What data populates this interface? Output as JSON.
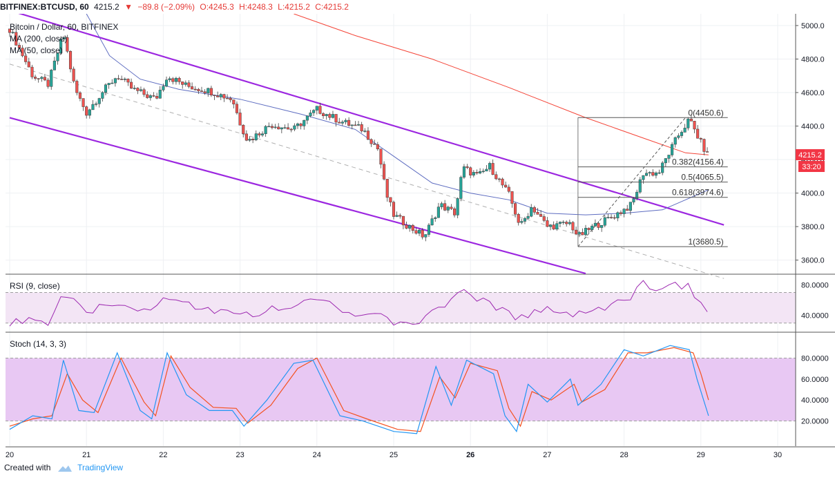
{
  "header": {
    "symbol": "BITFINEX:BTCUSD, 60",
    "last": "4215.2",
    "change": "−89.8 (−2.09%)",
    "open": "O:4245.3",
    "high": "H:4248.3",
    "low": "L:4215.2",
    "close": "C:4215.2"
  },
  "legend": {
    "title": "Bitcoin / Dollar, 60, BITFINEX",
    "ma200": "MA (200, close)",
    "ma50": "MA (50, close)"
  },
  "price_tag": {
    "value": "4215.2",
    "countdown": "33:20",
    "color": "#f23645"
  },
  "fib_levels": [
    {
      "label": "0(4450.6)",
      "price": 4450.6
    },
    {
      "label": "0.382(4156.4)",
      "price": 4156.4
    },
    {
      "label": "0.5(4065.5)",
      "price": 4065.5
    },
    {
      "label": "0.618(3974.6)",
      "price": 3974.6
    },
    {
      "label": "1(3680.5)",
      "price": 3680.5
    }
  ],
  "rsi": {
    "label": "RSI (9, close)",
    "ticks": [
      "80.0000",
      "40.0000"
    ],
    "bands": [
      70,
      30
    ]
  },
  "stoch": {
    "label": "Stoch (14, 3, 3)",
    "ticks": [
      "80.0000",
      "60.0000",
      "40.0000",
      "20.0000"
    ],
    "bands": [
      80,
      20
    ]
  },
  "chart_data": {
    "type": "candlestick",
    "title": "Bitcoin / Dollar, 60, BITFINEX",
    "x_ticks": [
      "20",
      "21",
      "22",
      "23",
      "24",
      "25",
      "26",
      "27",
      "28",
      "29",
      "30"
    ],
    "x_tick_days": [
      20,
      21,
      22,
      23,
      24,
      25,
      26,
      27,
      28,
      29,
      30
    ],
    "y_ticks": [
      5000,
      4800,
      4600,
      4400,
      4200,
      4000,
      3800,
      3600
    ],
    "y_tick_labels": [
      "5000.0",
      "4800.0",
      "4600.0",
      "4400.0",
      "4200.0",
      "4000.0",
      "3800.0",
      "3600.0"
    ],
    "ylim": [
      3520,
      5070
    ],
    "close_path": [
      {
        "day": 20.0,
        "price": 4980
      },
      {
        "day": 20.3,
        "price": 4700
      },
      {
        "day": 20.5,
        "price": 4650
      },
      {
        "day": 20.7,
        "price": 4950
      },
      {
        "day": 20.85,
        "price": 4620
      },
      {
        "day": 21.0,
        "price": 4480
      },
      {
        "day": 21.2,
        "price": 4600
      },
      {
        "day": 21.4,
        "price": 4700
      },
      {
        "day": 21.6,
        "price": 4620
      },
      {
        "day": 21.9,
        "price": 4560
      },
      {
        "day": 22.05,
        "price": 4700
      },
      {
        "day": 22.3,
        "price": 4640
      },
      {
        "day": 22.6,
        "price": 4610
      },
      {
        "day": 22.9,
        "price": 4560
      },
      {
        "day": 23.0,
        "price": 4420
      },
      {
        "day": 23.1,
        "price": 4310
      },
      {
        "day": 23.4,
        "price": 4410
      },
      {
        "day": 23.7,
        "price": 4380
      },
      {
        "day": 24.0,
        "price": 4500
      },
      {
        "day": 24.3,
        "price": 4430
      },
      {
        "day": 24.6,
        "price": 4380
      },
      {
        "day": 24.8,
        "price": 4260
      },
      {
        "day": 24.9,
        "price": 4000
      },
      {
        "day": 25.0,
        "price": 3870
      },
      {
        "day": 25.2,
        "price": 3800
      },
      {
        "day": 25.4,
        "price": 3740
      },
      {
        "day": 25.6,
        "price": 3930
      },
      {
        "day": 25.8,
        "price": 3880
      },
      {
        "day": 25.9,
        "price": 4150
      },
      {
        "day": 26.1,
        "price": 4100
      },
      {
        "day": 26.25,
        "price": 4160
      },
      {
        "day": 26.5,
        "price": 3990
      },
      {
        "day": 26.65,
        "price": 3800
      },
      {
        "day": 26.8,
        "price": 3920
      },
      {
        "day": 27.0,
        "price": 3800
      },
      {
        "day": 27.3,
        "price": 3820
      },
      {
        "day": 27.4,
        "price": 3740
      },
      {
        "day": 27.6,
        "price": 3800
      },
      {
        "day": 27.85,
        "price": 3860
      },
      {
        "day": 28.1,
        "price": 3930
      },
      {
        "day": 28.25,
        "price": 4120
      },
      {
        "day": 28.45,
        "price": 4120
      },
      {
        "day": 28.7,
        "price": 4340
      },
      {
        "day": 28.85,
        "price": 4440
      },
      {
        "day": 29.0,
        "price": 4300
      },
      {
        "day": 29.1,
        "price": 4215
      }
    ],
    "ma200": [
      {
        "day": 23.7,
        "price": 5070
      },
      {
        "day": 24.5,
        "price": 4940
      },
      {
        "day": 25.5,
        "price": 4800
      },
      {
        "day": 26.5,
        "price": 4630
      },
      {
        "day": 27.5,
        "price": 4450
      },
      {
        "day": 28.3,
        "price": 4320
      },
      {
        "day": 28.8,
        "price": 4240
      },
      {
        "day": 29.1,
        "price": 4228
      }
    ],
    "ma50": [
      {
        "day": 21.0,
        "price": 5070
      },
      {
        "day": 21.3,
        "price": 4820
      },
      {
        "day": 21.7,
        "price": 4680
      },
      {
        "day": 22.2,
        "price": 4620
      },
      {
        "day": 23.0,
        "price": 4560
      },
      {
        "day": 23.8,
        "price": 4470
      },
      {
        "day": 24.5,
        "price": 4380
      },
      {
        "day": 25.0,
        "price": 4220
      },
      {
        "day": 25.5,
        "price": 4060
      },
      {
        "day": 26.0,
        "price": 4000
      },
      {
        "day": 26.5,
        "price": 3960
      },
      {
        "day": 27.0,
        "price": 3880
      },
      {
        "day": 27.5,
        "price": 3870
      },
      {
        "day": 28.0,
        "price": 3880
      },
      {
        "day": 28.5,
        "price": 3900
      },
      {
        "day": 28.8,
        "price": 3960
      },
      {
        "day": 29.1,
        "price": 4020
      }
    ],
    "channel_upper": [
      {
        "day": 20.0,
        "price": 5090
      },
      {
        "day": 29.3,
        "price": 3810
      }
    ],
    "channel_lower": [
      {
        "day": 20.0,
        "price": 4450
      },
      {
        "day": 27.5,
        "price": 3520
      }
    ],
    "channel_mid": [
      {
        "day": 20.0,
        "price": 4770
      },
      {
        "day": 29.3,
        "price": 3490
      }
    ],
    "fib_anchor": {
      "start_day": 27.4,
      "end_day": 29.35,
      "low": 3680.5,
      "high": 4450.6
    },
    "rsi_path": [
      {
        "day": 20.0,
        "v": 31
      },
      {
        "day": 20.3,
        "v": 36
      },
      {
        "day": 20.5,
        "v": 32
      },
      {
        "day": 20.7,
        "v": 70
      },
      {
        "day": 21.0,
        "v": 46
      },
      {
        "day": 21.4,
        "v": 55
      },
      {
        "day": 21.8,
        "v": 48
      },
      {
        "day": 22.0,
        "v": 60
      },
      {
        "day": 22.5,
        "v": 50
      },
      {
        "day": 23.0,
        "v": 38
      },
      {
        "day": 23.4,
        "v": 48
      },
      {
        "day": 24.0,
        "v": 62
      },
      {
        "day": 24.5,
        "v": 42
      },
      {
        "day": 24.8,
        "v": 48
      },
      {
        "day": 25.0,
        "v": 28
      },
      {
        "day": 25.4,
        "v": 35
      },
      {
        "day": 25.6,
        "v": 50
      },
      {
        "day": 25.9,
        "v": 72
      },
      {
        "day": 26.3,
        "v": 52
      },
      {
        "day": 26.6,
        "v": 38
      },
      {
        "day": 27.0,
        "v": 48
      },
      {
        "day": 27.4,
        "v": 42
      },
      {
        "day": 27.8,
        "v": 52
      },
      {
        "day": 28.1,
        "v": 62
      },
      {
        "day": 28.2,
        "v": 82
      },
      {
        "day": 28.5,
        "v": 75
      },
      {
        "day": 28.7,
        "v": 80
      },
      {
        "day": 28.85,
        "v": 78
      },
      {
        "day": 28.95,
        "v": 60
      },
      {
        "day": 29.1,
        "v": 47
      }
    ],
    "stoch_k": [
      {
        "day": 20.0,
        "v": 12
      },
      {
        "day": 20.3,
        "v": 25
      },
      {
        "day": 20.55,
        "v": 22
      },
      {
        "day": 20.7,
        "v": 78
      },
      {
        "day": 20.9,
        "v": 30
      },
      {
        "day": 21.1,
        "v": 28
      },
      {
        "day": 21.4,
        "v": 85
      },
      {
        "day": 21.7,
        "v": 30
      },
      {
        "day": 21.85,
        "v": 22
      },
      {
        "day": 22.05,
        "v": 85
      },
      {
        "day": 22.3,
        "v": 45
      },
      {
        "day": 22.6,
        "v": 30
      },
      {
        "day": 22.9,
        "v": 30
      },
      {
        "day": 23.05,
        "v": 15
      },
      {
        "day": 23.35,
        "v": 40
      },
      {
        "day": 23.7,
        "v": 75
      },
      {
        "day": 23.95,
        "v": 78
      },
      {
        "day": 24.3,
        "v": 25
      },
      {
        "day": 24.6,
        "v": 20
      },
      {
        "day": 25.0,
        "v": 10
      },
      {
        "day": 25.3,
        "v": 8
      },
      {
        "day": 25.55,
        "v": 72
      },
      {
        "day": 25.75,
        "v": 35
      },
      {
        "day": 25.95,
        "v": 78
      },
      {
        "day": 26.3,
        "v": 65
      },
      {
        "day": 26.45,
        "v": 25
      },
      {
        "day": 26.6,
        "v": 10
      },
      {
        "day": 26.75,
        "v": 55
      },
      {
        "day": 27.0,
        "v": 38
      },
      {
        "day": 27.3,
        "v": 60
      },
      {
        "day": 27.4,
        "v": 35
      },
      {
        "day": 27.7,
        "v": 55
      },
      {
        "day": 28.0,
        "v": 88
      },
      {
        "day": 28.25,
        "v": 82
      },
      {
        "day": 28.6,
        "v": 92
      },
      {
        "day": 28.85,
        "v": 88
      },
      {
        "day": 28.95,
        "v": 60
      },
      {
        "day": 29.1,
        "v": 25
      }
    ],
    "stoch_d": [
      {
        "day": 20.0,
        "v": 15
      },
      {
        "day": 20.3,
        "v": 22
      },
      {
        "day": 20.55,
        "v": 25
      },
      {
        "day": 20.75,
        "v": 65
      },
      {
        "day": 20.95,
        "v": 40
      },
      {
        "day": 21.15,
        "v": 28
      },
      {
        "day": 21.45,
        "v": 80
      },
      {
        "day": 21.75,
        "v": 38
      },
      {
        "day": 21.9,
        "v": 25
      },
      {
        "day": 22.1,
        "v": 82
      },
      {
        "day": 22.35,
        "v": 52
      },
      {
        "day": 22.65,
        "v": 33
      },
      {
        "day": 22.95,
        "v": 32
      },
      {
        "day": 23.1,
        "v": 18
      },
      {
        "day": 23.4,
        "v": 35
      },
      {
        "day": 23.75,
        "v": 70
      },
      {
        "day": 24.0,
        "v": 80
      },
      {
        "day": 24.35,
        "v": 30
      },
      {
        "day": 24.65,
        "v": 22
      },
      {
        "day": 25.05,
        "v": 12
      },
      {
        "day": 25.35,
        "v": 10
      },
      {
        "day": 25.6,
        "v": 62
      },
      {
        "day": 25.8,
        "v": 42
      },
      {
        "day": 26.0,
        "v": 75
      },
      {
        "day": 26.35,
        "v": 68
      },
      {
        "day": 26.5,
        "v": 32
      },
      {
        "day": 26.65,
        "v": 15
      },
      {
        "day": 26.8,
        "v": 48
      },
      {
        "day": 27.05,
        "v": 40
      },
      {
        "day": 27.35,
        "v": 55
      },
      {
        "day": 27.45,
        "v": 38
      },
      {
        "day": 27.75,
        "v": 50
      },
      {
        "day": 28.05,
        "v": 85
      },
      {
        "day": 28.3,
        "v": 85
      },
      {
        "day": 28.65,
        "v": 90
      },
      {
        "day": 28.9,
        "v": 85
      },
      {
        "day": 29.0,
        "v": 65
      },
      {
        "day": 29.1,
        "v": 40
      }
    ]
  },
  "colors": {
    "up": "#26a69a",
    "down": "#ef5350",
    "channel": "#9c27e0",
    "ma200": "#f44336",
    "ma50": "#5c6bc0",
    "rsi": "#9c27b0",
    "stoch_k": "#2196f3",
    "stoch_d": "#f4511e"
  },
  "footer": {
    "created_with": "Created with",
    "brand": "TradingView"
  }
}
